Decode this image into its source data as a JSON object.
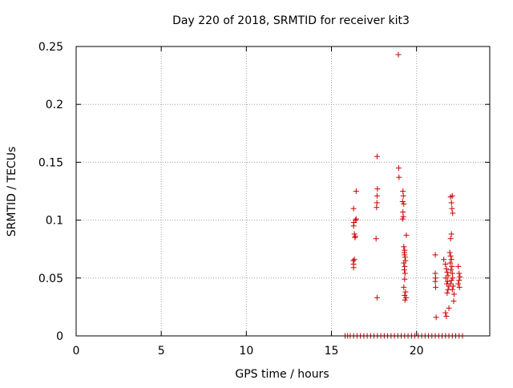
{
  "chart_data": {
    "type": "scatter",
    "title": "Day 220 of 2018, SRMTID for receiver kit3",
    "xlabel": "GPS time / hours",
    "ylabel": "SRMTID / TECUs",
    "xlim": [
      0,
      24.3
    ],
    "ylim": [
      0,
      0.25
    ],
    "grid": true,
    "marker": "+",
    "colors": {
      "point": "#cc0000",
      "axis": "#000000",
      "grid": "#a0a0a0"
    },
    "x_ticks": [
      {
        "value": 0,
        "label": "0"
      },
      {
        "value": 5,
        "label": "5"
      },
      {
        "value": 10,
        "label": "10"
      },
      {
        "value": 15,
        "label": "15"
      },
      {
        "value": 20,
        "label": "20"
      }
    ],
    "y_ticks": [
      {
        "value": 0,
        "label": "0"
      },
      {
        "value": 0.05,
        "label": "0.05"
      },
      {
        "value": 0.1,
        "label": "0.1"
      },
      {
        "value": 0.15,
        "label": "0.15"
      },
      {
        "value": 0.2,
        "label": "0.2"
      },
      {
        "value": 0.25,
        "label": "0.25"
      }
    ],
    "series": [
      {
        "name": "SRMTID",
        "points": [
          [
            15.8,
            0
          ],
          [
            15.95,
            0
          ],
          [
            16.1,
            0
          ],
          [
            16.3,
            0
          ],
          [
            16.5,
            0
          ],
          [
            16.7,
            0
          ],
          [
            16.9,
            0
          ],
          [
            17.1,
            0
          ],
          [
            17.3,
            0
          ],
          [
            17.5,
            0
          ],
          [
            17.7,
            0
          ],
          [
            17.9,
            0
          ],
          [
            18.1,
            0
          ],
          [
            18.3,
            0
          ],
          [
            18.5,
            0
          ],
          [
            18.7,
            0
          ],
          [
            18.9,
            0
          ],
          [
            19.1,
            0
          ],
          [
            19.3,
            0
          ],
          [
            19.5,
            0
          ],
          [
            19.7,
            0
          ],
          [
            19.9,
            0
          ],
          [
            20.1,
            0
          ],
          [
            20.3,
            0
          ],
          [
            20.5,
            0
          ],
          [
            20.7,
            0
          ],
          [
            20.9,
            0
          ],
          [
            21.1,
            0
          ],
          [
            21.3,
            0
          ],
          [
            21.5,
            0
          ],
          [
            21.7,
            0
          ],
          [
            21.9,
            0
          ],
          [
            22.1,
            0
          ],
          [
            22.3,
            0
          ],
          [
            22.5,
            0
          ],
          [
            22.7,
            0
          ],
          [
            16.28,
            0.065
          ],
          [
            16.3,
            0.062
          ],
          [
            16.3,
            0.059
          ],
          [
            16.35,
            0.066
          ],
          [
            16.3,
            0.095
          ],
          [
            16.32,
            0.098
          ],
          [
            16.35,
            0.088
          ],
          [
            16.38,
            0.085
          ],
          [
            16.4,
            0.086
          ],
          [
            16.42,
            0.1
          ],
          [
            16.45,
            0.101
          ],
          [
            16.3,
            0.11
          ],
          [
            16.45,
            0.125
          ],
          [
            17.68,
            0.155
          ],
          [
            17.7,
            0.127
          ],
          [
            17.68,
            0.121
          ],
          [
            17.67,
            0.115
          ],
          [
            17.65,
            0.111
          ],
          [
            17.62,
            0.084
          ],
          [
            17.68,
            0.033
          ],
          [
            18.93,
            0.243
          ],
          [
            18.95,
            0.145
          ],
          [
            18.97,
            0.137
          ],
          [
            19.2,
            0.125
          ],
          [
            19.22,
            0.121
          ],
          [
            19.18,
            0.116
          ],
          [
            19.25,
            0.114
          ],
          [
            19.2,
            0.107
          ],
          [
            19.22,
            0.103
          ],
          [
            19.18,
            0.101
          ],
          [
            19.4,
            0.087
          ],
          [
            19.25,
            0.077
          ],
          [
            19.3,
            0.074
          ],
          [
            19.28,
            0.072
          ],
          [
            19.3,
            0.07
          ],
          [
            19.32,
            0.068
          ],
          [
            19.35,
            0.065
          ],
          [
            19.25,
            0.063
          ],
          [
            19.3,
            0.06
          ],
          [
            19.28,
            0.057
          ],
          [
            19.32,
            0.054
          ],
          [
            19.3,
            0.049
          ],
          [
            19.25,
            0.042
          ],
          [
            19.35,
            0.038
          ],
          [
            19.3,
            0.035
          ],
          [
            19.38,
            0.033
          ],
          [
            19.32,
            0.031
          ],
          [
            21.1,
            0.07
          ],
          [
            21.1,
            0.054
          ],
          [
            21.12,
            0.05
          ],
          [
            21.1,
            0.047
          ],
          [
            21.12,
            0.042
          ],
          [
            21.15,
            0.016
          ],
          [
            21.6,
            0.066
          ],
          [
            21.7,
            0.062
          ],
          [
            21.75,
            0.058
          ],
          [
            21.8,
            0.055
          ],
          [
            21.85,
            0.052
          ],
          [
            21.72,
            0.05
          ],
          [
            21.82,
            0.047
          ],
          [
            21.78,
            0.045
          ],
          [
            21.9,
            0.043
          ],
          [
            21.85,
            0.04
          ],
          [
            21.8,
            0.037
          ],
          [
            21.7,
            0.02
          ],
          [
            21.75,
            0.017
          ],
          [
            21.9,
            0.024
          ],
          [
            21.95,
            0.072
          ],
          [
            22.0,
            0.069
          ],
          [
            22.05,
            0.066
          ],
          [
            21.98,
            0.063
          ],
          [
            22.08,
            0.06
          ],
          [
            22.02,
            0.057
          ],
          [
            22.1,
            0.054
          ],
          [
            22.12,
            0.05
          ],
          [
            22.05,
            0.048
          ],
          [
            22.0,
            0.045
          ],
          [
            22.15,
            0.043
          ],
          [
            22.1,
            0.04
          ],
          [
            22.2,
            0.036
          ],
          [
            22.18,
            0.03
          ],
          [
            22.0,
            0.084
          ],
          [
            22.05,
            0.088
          ],
          [
            22.0,
            0.12
          ],
          [
            22.1,
            0.121
          ],
          [
            22.05,
            0.115
          ],
          [
            22.08,
            0.11
          ],
          [
            22.12,
            0.106
          ],
          [
            22.45,
            0.06
          ],
          [
            22.5,
            0.054
          ],
          [
            22.55,
            0.051
          ],
          [
            22.5,
            0.048
          ],
          [
            22.45,
            0.045
          ],
          [
            22.52,
            0.042
          ]
        ]
      }
    ]
  }
}
